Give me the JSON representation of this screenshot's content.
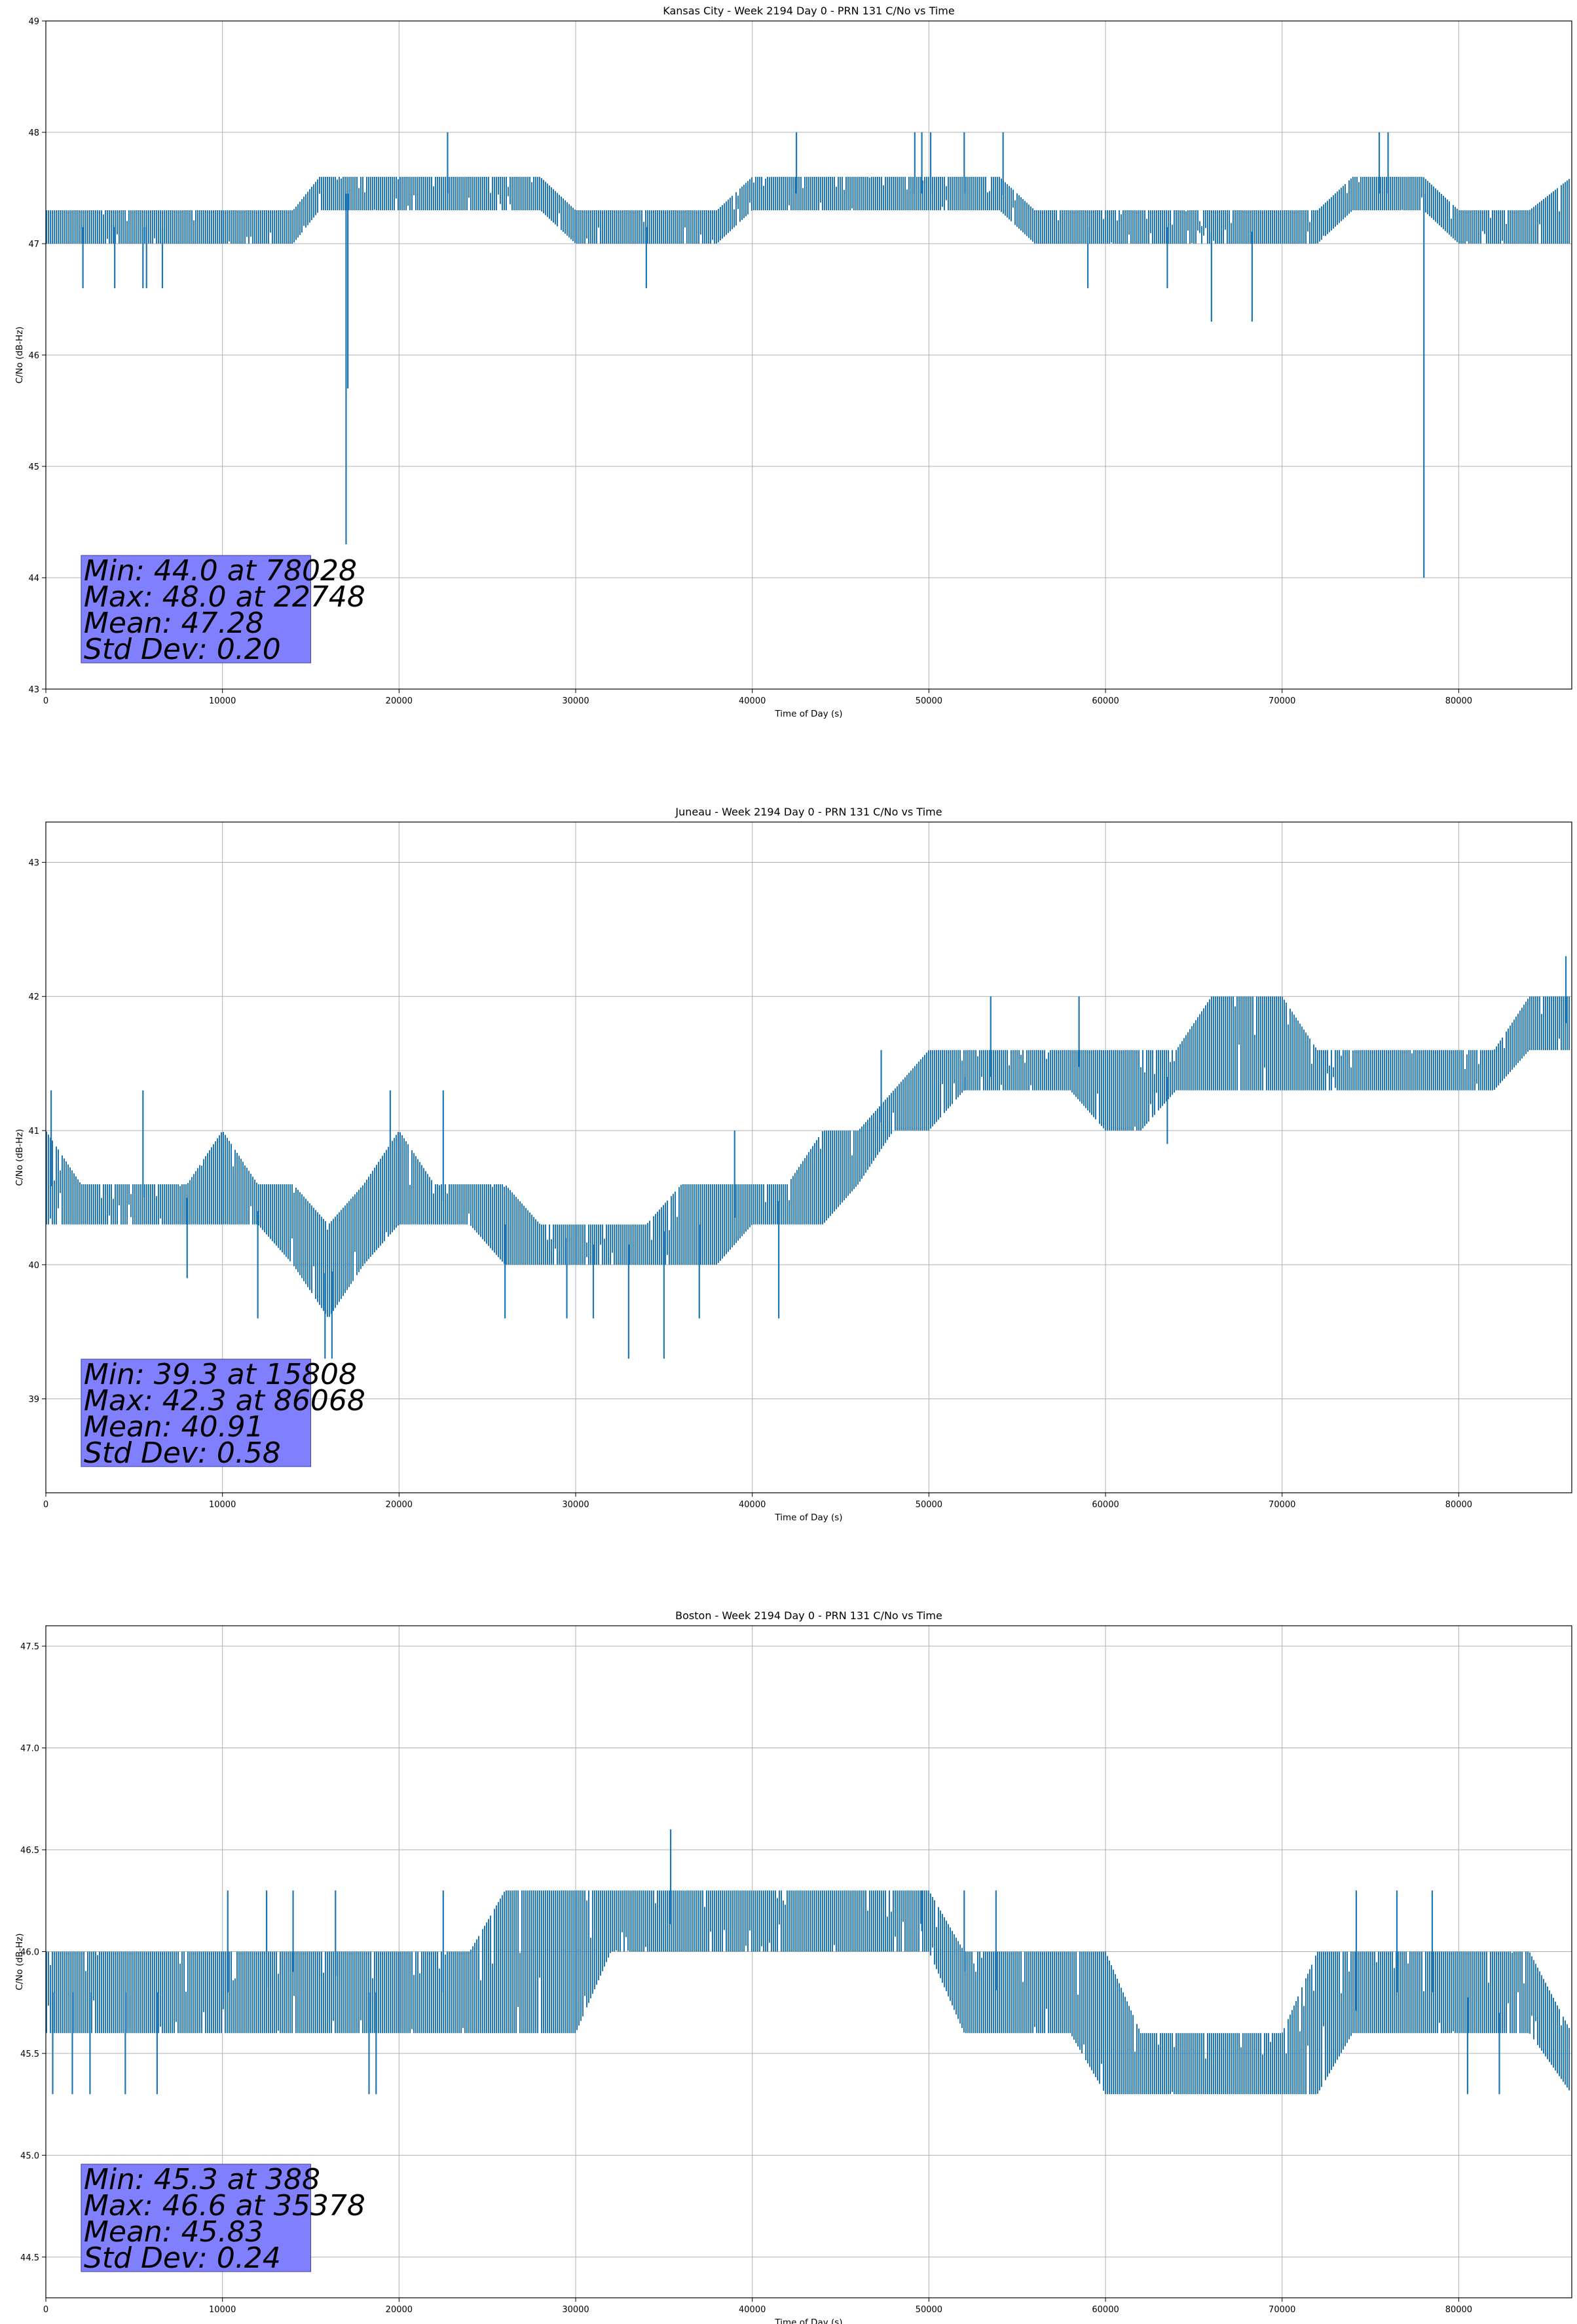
{
  "chart_data": [
    {
      "type": "line",
      "title": "Kansas City - Week 2194 Day 0 - PRN 131 C/No vs Time",
      "xlabel": "Time of Day (s)",
      "ylabel": "C/No (dB-Hz)",
      "xlim": [
        0,
        86400
      ],
      "ylim": [
        43,
        49
      ],
      "x_ticks": [
        0,
        10000,
        20000,
        30000,
        40000,
        50000,
        60000,
        70000,
        80000
      ],
      "y_ticks": [
        43,
        44,
        45,
        46,
        47,
        48,
        49
      ],
      "y_tick_labels": [
        "43",
        "44",
        "45",
        "46",
        "47",
        "48",
        "49"
      ],
      "grid": true,
      "color": "#1f77b4",
      "series": [
        {
          "x": [
            0,
            2000,
            4000,
            6000,
            8000,
            10000,
            12000,
            14000,
            15500,
            17000,
            18500,
            20000,
            22000,
            24000,
            26000,
            28000,
            30000,
            32000,
            34000,
            36000,
            38000,
            40000,
            42000,
            44000,
            46000,
            48000,
            50000,
            52000,
            54000,
            56000,
            58000,
            60000,
            62000,
            64000,
            66000,
            68000,
            70000,
            72000,
            74000,
            76000,
            78000,
            80000,
            82000,
            84000,
            86400
          ],
          "y": [
            47.15,
            47.15,
            47.15,
            47.15,
            47.15,
            47.2,
            47.2,
            47.2,
            47.3,
            47.45,
            47.45,
            47.45,
            47.45,
            47.45,
            47.45,
            47.45,
            47.3,
            47.15,
            47.15,
            47.15,
            47.2,
            47.45,
            47.45,
            47.45,
            47.45,
            47.45,
            47.45,
            47.45,
            47.45,
            47.3,
            47.15,
            47.15,
            47.15,
            47.15,
            47.1,
            47.1,
            47.15,
            47.15,
            47.45,
            47.45,
            47.45,
            47.3,
            47.15,
            47.2,
            47.3
          ],
          "low": [
            47.0,
            47.0,
            47.0,
            47.0,
            47.0,
            47.0,
            47.0,
            47.0,
            47.3,
            47.3,
            47.3,
            47.3,
            47.3,
            47.3,
            47.3,
            47.3,
            47.0,
            47.0,
            47.0,
            47.0,
            47.0,
            47.3,
            47.3,
            47.3,
            47.3,
            47.3,
            47.3,
            47.3,
            47.3,
            47.0,
            47.0,
            47.0,
            47.0,
            47.0,
            47.0,
            47.0,
            47.0,
            47.0,
            47.3,
            47.3,
            47.3,
            47.0,
            47.0,
            47.0,
            47.0
          ],
          "high": [
            47.3,
            47.3,
            47.3,
            47.3,
            47.3,
            47.3,
            47.3,
            47.3,
            47.6,
            47.6,
            47.6,
            47.6,
            47.6,
            47.6,
            47.6,
            47.6,
            47.3,
            47.3,
            47.3,
            47.3,
            47.3,
            47.6,
            47.6,
            47.6,
            47.6,
            47.6,
            47.6,
            47.6,
            47.6,
            47.3,
            47.3,
            47.3,
            47.3,
            47.3,
            47.3,
            47.3,
            47.3,
            47.3,
            47.6,
            47.6,
            47.6,
            47.3,
            47.3,
            47.3,
            47.6
          ],
          "spikes": [
            [
              2100,
              46.6
            ],
            [
              3900,
              46.6
            ],
            [
              5500,
              46.6
            ],
            [
              5700,
              46.6
            ],
            [
              6600,
              46.6
            ],
            [
              17000,
              44.3
            ],
            [
              17100,
              45.7
            ],
            [
              22748,
              48.0
            ],
            [
              34000,
              46.6
            ],
            [
              42500,
              48.0
            ],
            [
              49200,
              48.0
            ],
            [
              49600,
              48.0
            ],
            [
              50100,
              48.0
            ],
            [
              52000,
              48.0
            ],
            [
              54200,
              48.0
            ],
            [
              59000,
              46.6
            ],
            [
              63500,
              46.6
            ],
            [
              66000,
              46.3
            ],
            [
              68300,
              46.3
            ],
            [
              75500,
              48.0
            ],
            [
              76000,
              48.0
            ],
            [
              78028,
              44.0
            ]
          ]
        }
      ],
      "annotation": [
        "Min: 44.0 at 78028",
        "Max: 48.0 at 22748",
        "Mean: 47.28",
        "Std Dev: 0.20"
      ]
    },
    {
      "type": "line",
      "title": "Juneau - Week 2194 Day 0 - PRN 131 C/No vs Time",
      "xlabel": "Time of Day (s)",
      "ylabel": "C/No (dB-Hz)",
      "xlim": [
        0,
        86400
      ],
      "ylim": [
        38.3,
        43.3
      ],
      "x_ticks": [
        0,
        10000,
        20000,
        30000,
        40000,
        50000,
        60000,
        70000,
        80000
      ],
      "y_ticks": [
        39,
        40,
        41,
        42,
        43
      ],
      "y_tick_labels": [
        "39",
        "40",
        "41",
        "42",
        "43"
      ],
      "grid": true,
      "color": "#1f77b4",
      "series": [
        {
          "x": [
            0,
            2000,
            4000,
            6000,
            8000,
            10000,
            12000,
            14000,
            16000,
            18000,
            20000,
            22000,
            24000,
            26000,
            28000,
            30000,
            32000,
            34000,
            36000,
            38000,
            40000,
            42000,
            44000,
            46000,
            48000,
            50000,
            52000,
            54000,
            56000,
            58000,
            60000,
            62000,
            64000,
            66000,
            68000,
            70000,
            72000,
            74000,
            76000,
            78000,
            80000,
            82000,
            84000,
            86400
          ],
          "y": [
            40.6,
            40.5,
            40.5,
            40.5,
            40.5,
            40.6,
            40.4,
            40.3,
            39.9,
            40.4,
            40.6,
            40.5,
            40.4,
            40.3,
            40.2,
            40.2,
            40.1,
            40.2,
            40.3,
            40.3,
            40.4,
            40.5,
            40.7,
            40.8,
            41.2,
            41.3,
            41.4,
            41.4,
            41.4,
            41.5,
            41.4,
            41.4,
            41.4,
            41.6,
            41.6,
            41.7,
            41.6,
            41.6,
            41.5,
            41.5,
            41.5,
            41.5,
            41.8,
            41.8
          ],
          "low": [
            40.3,
            40.3,
            40.3,
            40.3,
            40.3,
            40.3,
            40.3,
            40.0,
            39.6,
            40.0,
            40.3,
            40.3,
            40.3,
            40.0,
            40.0,
            40.0,
            40.0,
            40.0,
            40.0,
            40.0,
            40.3,
            40.3,
            40.3,
            40.6,
            41.0,
            41.0,
            41.3,
            41.3,
            41.3,
            41.3,
            41.0,
            41.0,
            41.3,
            41.3,
            41.3,
            41.3,
            41.3,
            41.3,
            41.3,
            41.3,
            41.3,
            41.3,
            41.6,
            41.6
          ],
          "high": [
            41.0,
            40.6,
            40.6,
            40.6,
            40.6,
            41.0,
            40.6,
            40.6,
            40.3,
            40.6,
            41.0,
            40.6,
            40.6,
            40.6,
            40.3,
            40.3,
            40.3,
            40.3,
            40.6,
            40.6,
            40.6,
            40.6,
            41.0,
            41.0,
            41.3,
            41.6,
            41.6,
            41.6,
            41.6,
            41.6,
            41.6,
            41.6,
            41.6,
            42.0,
            42.0,
            42.0,
            41.6,
            41.6,
            41.6,
            41.6,
            41.6,
            41.6,
            42.0,
            42.0
          ],
          "spikes": [
            [
              300,
              41.3
            ],
            [
              5500,
              41.3
            ],
            [
              8000,
              39.9
            ],
            [
              12000,
              39.6
            ],
            [
              15808,
              39.3
            ],
            [
              16200,
              39.3
            ],
            [
              19500,
              41.3
            ],
            [
              22500,
              41.3
            ],
            [
              26000,
              39.6
            ],
            [
              29500,
              39.6
            ],
            [
              31000,
              39.6
            ],
            [
              33000,
              39.3
            ],
            [
              35000,
              39.3
            ],
            [
              37000,
              39.6
            ],
            [
              39000,
              41.0
            ],
            [
              41500,
              39.6
            ],
            [
              47300,
              41.6
            ],
            [
              52000,
              41.3
            ],
            [
              53500,
              42.0
            ],
            [
              58500,
              42.0
            ],
            [
              63500,
              40.9
            ],
            [
              86068,
              42.3
            ]
          ]
        }
      ],
      "annotation": [
        "Min: 39.3 at 15808",
        "Max: 42.3 at 86068",
        "Mean: 40.91",
        "Std Dev: 0.58"
      ]
    },
    {
      "type": "line",
      "title": "Boston - Week 2194 Day 0 - PRN 131 C/No vs Time",
      "xlabel": "Time of Day (s)",
      "ylabel": "C/No (dB-Hz)",
      "xlim": [
        0,
        86400
      ],
      "ylim": [
        44.3,
        47.6
      ],
      "x_ticks": [
        0,
        10000,
        20000,
        30000,
        40000,
        50000,
        60000,
        70000,
        80000
      ],
      "y_ticks": [
        44.5,
        45.0,
        45.5,
        46.0,
        46.5,
        47.0,
        47.5
      ],
      "y_tick_labels": [
        "44.5",
        "45.0",
        "45.5",
        "46.0",
        "46.5",
        "47.0",
        "47.5"
      ],
      "grid": true,
      "color": "#1f77b4",
      "series": [
        {
          "x": [
            0,
            2000,
            4000,
            6000,
            8000,
            10000,
            12000,
            14000,
            16000,
            18000,
            20000,
            22000,
            24000,
            26000,
            28000,
            30000,
            32000,
            34000,
            36000,
            38000,
            40000,
            42000,
            44000,
            46000,
            48000,
            50000,
            52000,
            54000,
            56000,
            58000,
            60000,
            62000,
            64000,
            66000,
            68000,
            70000,
            72000,
            74000,
            76000,
            78000,
            80000,
            82000,
            84000,
            86400
          ],
          "y": [
            45.8,
            45.8,
            45.8,
            45.8,
            45.8,
            45.8,
            45.8,
            45.9,
            45.9,
            45.8,
            45.8,
            45.8,
            45.8,
            45.9,
            45.9,
            46.0,
            46.1,
            46.1,
            46.15,
            46.15,
            46.15,
            46.15,
            46.15,
            46.15,
            46.1,
            46.1,
            45.9,
            45.8,
            45.8,
            45.8,
            45.6,
            45.5,
            45.5,
            45.5,
            45.5,
            45.5,
            45.5,
            45.7,
            45.8,
            45.8,
            45.8,
            45.7,
            45.7,
            45.6
          ],
          "low": [
            45.6,
            45.6,
            45.6,
            45.6,
            45.6,
            45.6,
            45.6,
            45.6,
            45.6,
            45.6,
            45.6,
            45.6,
            45.6,
            45.6,
            45.6,
            45.6,
            46.0,
            46.0,
            46.0,
            46.0,
            46.0,
            46.0,
            46.0,
            46.0,
            46.0,
            46.0,
            45.6,
            45.6,
            45.6,
            45.6,
            45.3,
            45.3,
            45.3,
            45.3,
            45.3,
            45.3,
            45.3,
            45.6,
            45.6,
            45.6,
            45.6,
            45.6,
            45.6,
            45.3
          ],
          "high": [
            46.0,
            46.0,
            46.0,
            46.0,
            46.0,
            46.0,
            46.0,
            46.0,
            46.0,
            46.0,
            46.0,
            46.0,
            46.0,
            46.3,
            46.3,
            46.3,
            46.3,
            46.3,
            46.3,
            46.3,
            46.3,
            46.3,
            46.3,
            46.3,
            46.3,
            46.3,
            46.0,
            46.0,
            46.0,
            46.0,
            46.0,
            45.6,
            45.6,
            45.6,
            45.6,
            45.6,
            46.0,
            46.0,
            46.0,
            46.0,
            46.0,
            46.0,
            46.0,
            45.6
          ],
          "spikes": [
            [
              388,
              45.3
            ],
            [
              1500,
              45.3
            ],
            [
              2500,
              45.3
            ],
            [
              4500,
              45.3
            ],
            [
              6300,
              45.3
            ],
            [
              10300,
              46.3
            ],
            [
              12500,
              46.3
            ],
            [
              14000,
              46.3
            ],
            [
              16400,
              46.3
            ],
            [
              18300,
              45.3
            ],
            [
              18700,
              45.3
            ],
            [
              22500,
              46.3
            ],
            [
              35378,
              46.6
            ],
            [
              49600,
              46.3
            ],
            [
              52000,
              46.3
            ],
            [
              53800,
              46.3
            ],
            [
              74200,
              46.3
            ],
            [
              76500,
              46.3
            ],
            [
              78500,
              46.3
            ],
            [
              80500,
              45.3
            ],
            [
              82300,
              45.3
            ]
          ]
        }
      ],
      "annotation": [
        "Min: 45.3 at 388",
        "Max: 46.6 at 35378",
        "Mean: 45.83",
        "Std Dev: 0.24"
      ]
    }
  ]
}
